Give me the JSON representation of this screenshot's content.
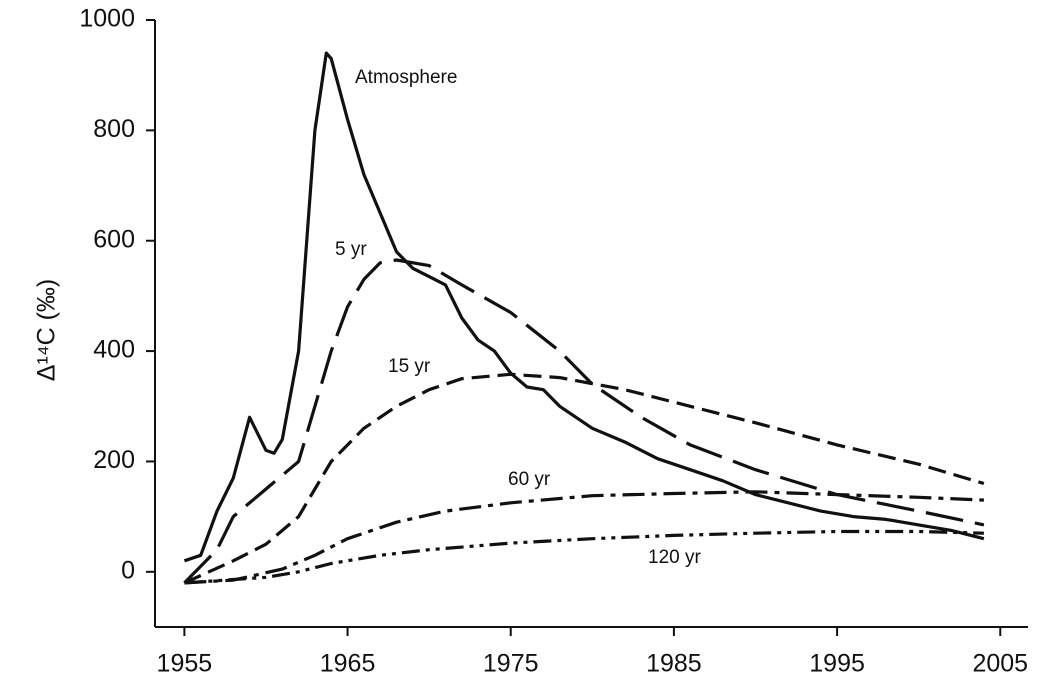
{
  "chart_data": {
    "type": "line",
    "y_label": "Δ¹⁴C (‰)",
    "xlim": [
      1953.2,
      2006.7
    ],
    "xticks": [
      1955,
      1965,
      1975,
      1985,
      1995,
      2005
    ],
    "ylim": [
      -100,
      1000
    ],
    "yticks": [
      0,
      200,
      400,
      600,
      800,
      1000
    ],
    "grid": false,
    "series": [
      {
        "name": "Atmosphere",
        "color": "#111111",
        "style": "solid",
        "x": [
          1955,
          1956,
          1957,
          1958,
          1959,
          1960,
          1960.5,
          1961,
          1962,
          1963,
          1963.7,
          1964,
          1965,
          1966,
          1967,
          1968,
          1969,
          1970,
          1971,
          1972,
          1973,
          1974,
          1975,
          1976,
          1977,
          1978,
          1980,
          1982,
          1984,
          1986,
          1988,
          1990,
          1992,
          1994,
          1996,
          1998,
          2000,
          2002,
          2004
        ],
        "values": [
          20,
          30,
          110,
          170,
          280,
          220,
          215,
          240,
          400,
          800,
          940,
          930,
          820,
          720,
          650,
          580,
          550,
          535,
          520,
          460,
          420,
          400,
          360,
          335,
          330,
          300,
          260,
          235,
          205,
          185,
          165,
          140,
          125,
          110,
          100,
          95,
          85,
          75,
          60
        ]
      },
      {
        "name": "5 yr",
        "color": "#111111",
        "style": "long-dash",
        "x": [
          1955,
          1957,
          1958,
          1960,
          1962,
          1963,
          1964,
          1965,
          1966,
          1967,
          1968,
          1970,
          1972,
          1975,
          1978,
          1980,
          1983,
          1986,
          1990,
          1995,
          2000,
          2004
        ],
        "values": [
          -20,
          40,
          100,
          150,
          200,
          300,
          400,
          480,
          530,
          560,
          565,
          555,
          520,
          470,
          400,
          340,
          280,
          230,
          185,
          140,
          110,
          85
        ]
      },
      {
        "name": "15 yr",
        "color": "#111111",
        "style": "dash",
        "x": [
          1955,
          1958,
          1960,
          1962,
          1963,
          1964,
          1966,
          1968,
          1970,
          1972,
          1975,
          1978,
          1982,
          1986,
          1990,
          1995,
          2000,
          2004
        ],
        "values": [
          -20,
          20,
          50,
          100,
          150,
          200,
          260,
          300,
          330,
          350,
          358,
          352,
          330,
          300,
          270,
          230,
          195,
          160
        ]
      },
      {
        "name": "60 yr",
        "color": "#111111",
        "style": "dash-dot",
        "x": [
          1955,
          1958,
          1961,
          1963,
          1965,
          1968,
          1971,
          1975,
          1980,
          1985,
          1990,
          1995,
          2000,
          2004
        ],
        "values": [
          -20,
          -15,
          5,
          30,
          60,
          90,
          110,
          125,
          138,
          142,
          145,
          140,
          135,
          130
        ]
      },
      {
        "name": "120 yr",
        "color": "#111111",
        "style": "dash-dot-dot",
        "x": [
          1955,
          1960,
          1962,
          1964,
          1967,
          1970,
          1975,
          1980,
          1985,
          1990,
          1995,
          2000,
          2004
        ],
        "values": [
          -20,
          -10,
          0,
          15,
          30,
          40,
          52,
          60,
          66,
          70,
          73,
          73,
          70
        ]
      }
    ]
  }
}
